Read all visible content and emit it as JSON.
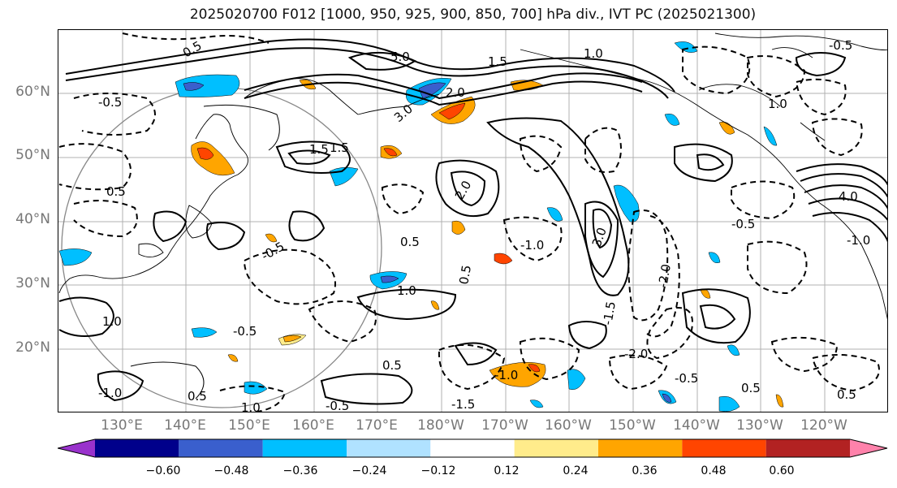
{
  "title": "2025020700 F012 [1000, 950, 925, 900, 850, 700] hPa div., IVT PC (2025021300)",
  "lat_labels": [
    "60°N",
    "50°N",
    "40°N",
    "30°N",
    "20°N"
  ],
  "lon_labels": [
    "130°E",
    "140°E",
    "150°E",
    "160°E",
    "170°E",
    "180°W",
    "170°W",
    "160°W",
    "150°W",
    "140°W",
    "130°W",
    "120°W"
  ],
  "colorbar": {
    "ticks": [
      "−0.60",
      "−0.48",
      "−0.36",
      "−0.24",
      "−0.12",
      "0.12",
      "0.24",
      "0.36",
      "0.48",
      "0.60"
    ],
    "colors": [
      "#9932cc",
      "#00008b",
      "#3a5fcd",
      "#00bfff",
      "#b0e2ff",
      "#ffffff",
      "#ffec8b",
      "#ffa500",
      "#ff4500",
      "#b22222",
      "#ff82ab"
    ]
  },
  "contour_labels": [
    "0.5",
    "-0.5",
    "1.0",
    "-1.0",
    "1.5",
    "-1.5",
    "2.0",
    "-2.0",
    "3.0",
    "4.0",
    "5.0",
    "0.5",
    "-0.5",
    "1.0",
    "1.5",
    "-0.5",
    "0.5",
    "1.0",
    "-1.0",
    "0.5",
    "-0.5",
    "-1.5",
    "2.0",
    "-2.0",
    "0.5",
    "-0.5",
    "1.0",
    "-1.0",
    "0.5",
    "3.0",
    "1.5",
    "-0.5",
    "0.5",
    "-0.5",
    "0.5",
    "1.0",
    "-1.0"
  ],
  "fill_colors": {
    "neg_light": "#b0e2ff",
    "neg_mid": "#00bfff",
    "neg_strong": "#3a5fcd",
    "neg_max": "#9932cc",
    "pos_light": "#ffec8b",
    "pos_mid": "#ffa500",
    "pos_strong": "#ff4500",
    "pos_max": "#b22222"
  }
}
